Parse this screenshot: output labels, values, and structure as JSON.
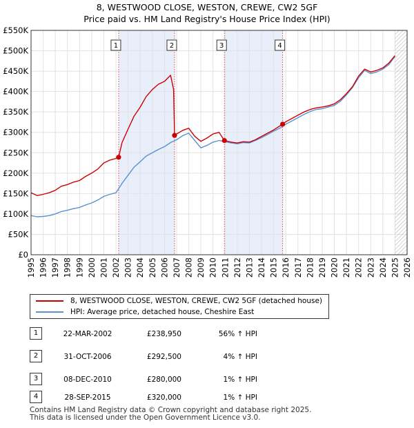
{
  "title_line1": "8, WESTWOOD CLOSE, WESTON, CREWE, CW2 5GF",
  "title_line2": "Price paid vs. HM Land Registry's House Price Index (HPI)",
  "chart_data": {
    "type": "line",
    "title": "8, WESTWOOD CLOSE, WESTON, CREWE, CW2 5GF - Price paid vs. HM Land Registry's House Price Index (HPI)",
    "xlabel": "",
    "ylabel": "",
    "xlim": [
      1995,
      2026
    ],
    "ylim": [
      0,
      550000
    ],
    "x_ticks": [
      1995,
      1996,
      1997,
      1998,
      1999,
      2000,
      2001,
      2002,
      2003,
      2004,
      2005,
      2006,
      2007,
      2008,
      2009,
      2010,
      2011,
      2012,
      2013,
      2014,
      2015,
      2016,
      2017,
      2018,
      2019,
      2020,
      2021,
      2022,
      2023,
      2024,
      2025,
      2026
    ],
    "y_ticks": [
      0,
      50000,
      100000,
      150000,
      200000,
      250000,
      300000,
      350000,
      400000,
      450000,
      500000,
      550000
    ],
    "y_tick_labels": [
      "£0",
      "£50K",
      "£100K",
      "£150K",
      "£200K",
      "£250K",
      "£300K",
      "£350K",
      "£400K",
      "£450K",
      "£500K",
      "£550K"
    ],
    "grid": true,
    "shaded_periods": [
      [
        2002.22,
        2006.83
      ],
      [
        2010.94,
        2015.74
      ]
    ],
    "hatched_after": 2025.0,
    "series": [
      {
        "name": "8, WESTWOOD CLOSE, WESTON, CREWE, CW2 5GF (detached house)",
        "color": "#cc0000",
        "x": [
          1995.0,
          1995.5,
          1996.0,
          1996.5,
          1997.0,
          1997.5,
          1998.0,
          1998.5,
          1999.0,
          1999.5,
          2000.0,
          2000.5,
          2001.0,
          2001.5,
          2002.0,
          2002.22,
          2002.5,
          2003.0,
          2003.5,
          2004.0,
          2004.5,
          2005.0,
          2005.5,
          2006.0,
          2006.5,
          2006.75,
          2006.83,
          2007.0,
          2007.5,
          2008.0,
          2008.5,
          2009.0,
          2009.5,
          2010.0,
          2010.5,
          2010.94,
          2011.5,
          2012.0,
          2012.5,
          2013.0,
          2013.5,
          2014.0,
          2014.5,
          2015.0,
          2015.74,
          2016.0,
          2016.5,
          2017.0,
          2017.5,
          2018.0,
          2018.5,
          2019.0,
          2019.5,
          2020.0,
          2020.5,
          2021.0,
          2021.5,
          2022.0,
          2022.5,
          2023.0,
          2023.5,
          2024.0,
          2024.5,
          2025.0
        ],
        "y": [
          152000,
          145000,
          148000,
          152000,
          158000,
          168000,
          172000,
          178000,
          182000,
          192000,
          200000,
          210000,
          225000,
          232000,
          236000,
          238950,
          275000,
          308000,
          340000,
          362000,
          388000,
          405000,
          418000,
          425000,
          440000,
          405000,
          292500,
          296000,
          305000,
          310000,
          290000,
          278000,
          286000,
          296000,
          300000,
          280000,
          276000,
          274000,
          277000,
          276000,
          282000,
          290000,
          298000,
          306000,
          320000,
          326000,
          334000,
          342000,
          350000,
          356000,
          360000,
          362000,
          365000,
          370000,
          380000,
          395000,
          412000,
          438000,
          455000,
          448000,
          452000,
          458000,
          470000,
          488000
        ]
      },
      {
        "name": "HPI: Average price, detached house, Cheshire East",
        "color": "#5b8fd0",
        "x": [
          1995.0,
          1995.5,
          1996.0,
          1996.5,
          1997.0,
          1997.5,
          1998.0,
          1998.5,
          1999.0,
          1999.5,
          2000.0,
          2000.5,
          2001.0,
          2001.5,
          2002.0,
          2002.5,
          2003.0,
          2003.5,
          2004.0,
          2004.5,
          2005.0,
          2005.5,
          2006.0,
          2006.5,
          2007.0,
          2007.5,
          2008.0,
          2008.5,
          2009.0,
          2009.5,
          2010.0,
          2010.5,
          2011.0,
          2011.5,
          2012.0,
          2012.5,
          2013.0,
          2013.5,
          2014.0,
          2014.5,
          2015.0,
          2015.5,
          2016.0,
          2016.5,
          2017.0,
          2017.5,
          2018.0,
          2018.5,
          2019.0,
          2019.5,
          2020.0,
          2020.5,
          2021.0,
          2021.5,
          2022.0,
          2022.5,
          2023.0,
          2023.5,
          2024.0,
          2024.5,
          2025.0
        ],
        "y": [
          96000,
          93000,
          94000,
          96000,
          100000,
          106000,
          109000,
          113000,
          116000,
          122000,
          127000,
          134000,
          143000,
          148000,
          152000,
          175000,
          195000,
          215000,
          228000,
          242000,
          250000,
          258000,
          265000,
          275000,
          282000,
          292000,
          298000,
          280000,
          262000,
          268000,
          276000,
          280000,
          277000,
          274000,
          272000,
          275000,
          274000,
          280000,
          287000,
          295000,
          303000,
          310000,
          320000,
          328000,
          336000,
          344000,
          351000,
          356000,
          358000,
          362000,
          366000,
          376000,
          392000,
          410000,
          434000,
          452000,
          444000,
          448000,
          455000,
          466000,
          486000
        ]
      }
    ],
    "annotations": [
      {
        "label": "1",
        "x": 2002.22,
        "y": 238950
      },
      {
        "label": "2",
        "x": 2006.83,
        "y": 292500
      },
      {
        "label": "3",
        "x": 2010.94,
        "y": 280000
      },
      {
        "label": "4",
        "x": 2015.74,
        "y": 320000
      }
    ]
  },
  "legend": {
    "series1": "8, WESTWOOD CLOSE, WESTON, CREWE, CW2 5GF (detached house)",
    "series2": "HPI: Average price, detached house, Cheshire East"
  },
  "sales": [
    {
      "num": "1",
      "date": "22-MAR-2002",
      "price": "£238,950",
      "hpi": "56% ↑ HPI"
    },
    {
      "num": "2",
      "date": "31-OCT-2006",
      "price": "£292,500",
      "hpi": "4% ↑ HPI"
    },
    {
      "num": "3",
      "date": "08-DEC-2010",
      "price": "£280,000",
      "hpi": "1% ↑ HPI"
    },
    {
      "num": "4",
      "date": "28-SEP-2015",
      "price": "£320,000",
      "hpi": "1% ↑ HPI"
    }
  ],
  "footer_line1": "Contains HM Land Registry data © Crown copyright and database right 2025.",
  "footer_line2": "This data is licensed under the Open Government Licence v3.0."
}
